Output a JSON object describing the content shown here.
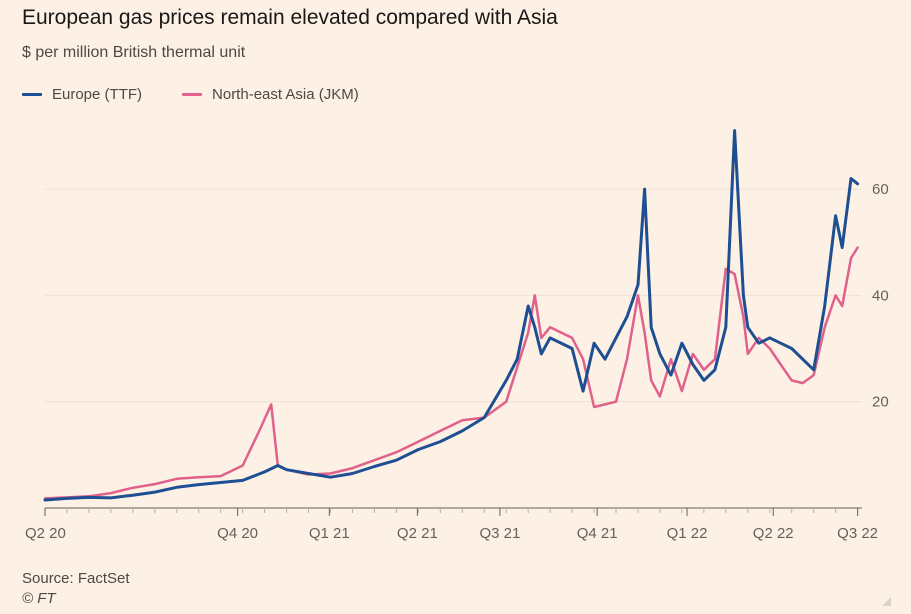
{
  "chart_data": {
    "type": "line",
    "title": "European gas prices remain elevated compared with Asia",
    "subtitle": "$ per million British thermal unit",
    "xlabel": "",
    "ylabel": "",
    "x_ticks": [
      "Q2 20",
      "Q4 20",
      "Q1 21",
      "Q2 21",
      "Q3 21",
      "Q4 21",
      "Q1 22",
      "Q2 22",
      "Q3 22"
    ],
    "y_ticks": [
      20,
      40,
      60
    ],
    "ylim": [
      0,
      73
    ],
    "grid": true,
    "legend_position": "top-left",
    "x_unit": "months since April 2020",
    "series": [
      {
        "name": "Europe (TTF)",
        "color": "#1e4f93",
        "points": [
          [
            0,
            1.5
          ],
          [
            1,
            1.8
          ],
          [
            2,
            2.0
          ],
          [
            3,
            1.9
          ],
          [
            4,
            2.4
          ],
          [
            5,
            3.0
          ],
          [
            6,
            3.9
          ],
          [
            7,
            4.4
          ],
          [
            8,
            4.8
          ],
          [
            9,
            5.2
          ],
          [
            10,
            6.8
          ],
          [
            10.6,
            8.0
          ],
          [
            11,
            7.2
          ],
          [
            12,
            6.5
          ],
          [
            13,
            5.8
          ],
          [
            14,
            6.5
          ],
          [
            15,
            7.8
          ],
          [
            16,
            9.0
          ],
          [
            17,
            11.0
          ],
          [
            18,
            12.5
          ],
          [
            19,
            14.5
          ],
          [
            20,
            17.0
          ],
          [
            21,
            24.0
          ],
          [
            21.5,
            28.0
          ],
          [
            22,
            38.0
          ],
          [
            22.3,
            34.0
          ],
          [
            22.6,
            29.0
          ],
          [
            23,
            32.0
          ],
          [
            24,
            30.0
          ],
          [
            24.5,
            22.0
          ],
          [
            25,
            31.0
          ],
          [
            25.5,
            28.0
          ],
          [
            26,
            32.0
          ],
          [
            26.5,
            36.0
          ],
          [
            27,
            42.0
          ],
          [
            27.3,
            60.0
          ],
          [
            27.6,
            34.0
          ],
          [
            28,
            29.0
          ],
          [
            28.5,
            25.0
          ],
          [
            29,
            31.0
          ],
          [
            29.5,
            27.0
          ],
          [
            30,
            24.0
          ],
          [
            30.5,
            26.0
          ],
          [
            31,
            34.0
          ],
          [
            31.4,
            71.0
          ],
          [
            31.8,
            40.0
          ],
          [
            32,
            34.0
          ],
          [
            32.5,
            31.0
          ],
          [
            33,
            32.0
          ],
          [
            33.5,
            31.0
          ],
          [
            34,
            30.0
          ],
          [
            34.5,
            28.0
          ],
          [
            35,
            26.0
          ],
          [
            35.5,
            38.0
          ],
          [
            36,
            55.0
          ],
          [
            36.3,
            49.0
          ],
          [
            36.7,
            62.0
          ],
          [
            37,
            61.0
          ]
        ]
      },
      {
        "name": "North-east Asia (JKM)",
        "color": "#e0618a",
        "points": [
          [
            0,
            1.8
          ],
          [
            1,
            2.0
          ],
          [
            2,
            2.2
          ],
          [
            3,
            2.8
          ],
          [
            4,
            3.8
          ],
          [
            5,
            4.5
          ],
          [
            6,
            5.5
          ],
          [
            7,
            5.8
          ],
          [
            8,
            6.0
          ],
          [
            9,
            8.0
          ],
          [
            9.7,
            14.0
          ],
          [
            10.3,
            19.5
          ],
          [
            10.6,
            8.0
          ],
          [
            11,
            7.2
          ],
          [
            12,
            6.3
          ],
          [
            13,
            6.5
          ],
          [
            14,
            7.5
          ],
          [
            15,
            9.0
          ],
          [
            16,
            10.5
          ],
          [
            17,
            12.5
          ],
          [
            18,
            14.5
          ],
          [
            19,
            16.5
          ],
          [
            20,
            17.0
          ],
          [
            21,
            20.0
          ],
          [
            22,
            33.0
          ],
          [
            22.3,
            40.0
          ],
          [
            22.6,
            32.0
          ],
          [
            23,
            34.0
          ],
          [
            24,
            32.0
          ],
          [
            24.5,
            28.0
          ],
          [
            25,
            19.0
          ],
          [
            25.5,
            19.5
          ],
          [
            26,
            20.0
          ],
          [
            26.5,
            28.0
          ],
          [
            27,
            40.0
          ],
          [
            27.3,
            33.0
          ],
          [
            27.6,
            24.0
          ],
          [
            28,
            21.0
          ],
          [
            28.5,
            28.0
          ],
          [
            29,
            22.0
          ],
          [
            29.5,
            29.0
          ],
          [
            30,
            26.0
          ],
          [
            30.5,
            28.0
          ],
          [
            31,
            45.0
          ],
          [
            31.4,
            44.0
          ],
          [
            31.8,
            36.0
          ],
          [
            32,
            29.0
          ],
          [
            32.5,
            32.0
          ],
          [
            33,
            30.0
          ],
          [
            33.5,
            27.0
          ],
          [
            34,
            24.0
          ],
          [
            34.5,
            23.5
          ],
          [
            35,
            25.0
          ],
          [
            35.5,
            34.0
          ],
          [
            36,
            40.0
          ],
          [
            36.3,
            38.0
          ],
          [
            36.7,
            47.0
          ],
          [
            37,
            49.0
          ]
        ]
      }
    ]
  },
  "footer": {
    "source": "Source: FactSet",
    "copyright": "© FT"
  }
}
